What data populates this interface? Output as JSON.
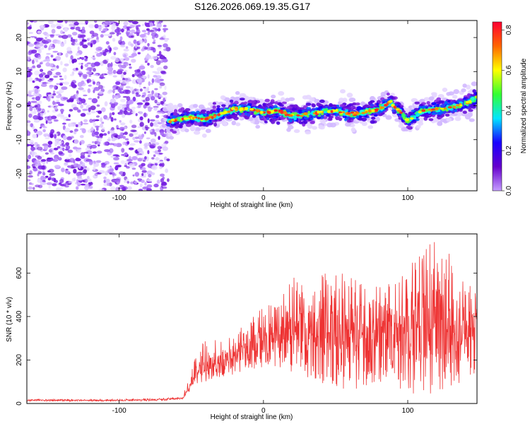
{
  "title": "S126.2026.069.19.35.G17",
  "chart_data": [
    {
      "type": "heatmap",
      "xlabel": "Height of straight line (km)",
      "ylabel": "Frequency (Hz)",
      "xlim": [
        -164,
        148
      ],
      "ylim": [
        -25,
        25
      ],
      "xticks": [
        -100,
        0,
        100
      ],
      "yticks": [
        -20,
        -10,
        0,
        10,
        20
      ],
      "colorbar": {
        "label": "Normalized spectral amplitude",
        "range": [
          0.0,
          0.84
        ],
        "ticks": [
          0.0,
          0.2,
          0.4,
          0.6,
          0.8
        ],
        "colormap": [
          "#c59dff",
          "#6600cc",
          "#1a00ff",
          "#00e5ff",
          "#33ff33",
          "#ffff00",
          "#ff6600",
          "#ff0033"
        ]
      },
      "noise_region_x": [
        -164,
        -66
      ],
      "ridge": {
        "x": [
          -66,
          -50,
          -40,
          -30,
          -20,
          -10,
          0,
          10,
          20,
          30,
          40,
          50,
          60,
          70,
          80,
          88,
          95,
          100,
          110,
          120,
          130,
          140,
          148
        ],
        "freq": [
          -4.5,
          -3.5,
          -4,
          -2.5,
          -1,
          -1,
          -2,
          -1.5,
          -3,
          -2.5,
          -2,
          -1.5,
          -2.5,
          -2,
          -1,
          1,
          -2,
          -4.5,
          -1.5,
          -1,
          -0.5,
          0.5,
          2.5
        ]
      }
    },
    {
      "type": "line",
      "xlabel": "Height of straight line (km)",
      "ylabel": "SNR (10 * v/v)",
      "xlim": [
        -164,
        148
      ],
      "ylim": [
        0,
        780
      ],
      "xticks": [
        -100,
        0,
        100
      ],
      "yticks": [
        0,
        200,
        400,
        600
      ],
      "series": [
        {
          "name": "SNR",
          "color": "#ee3333",
          "x": [
            -164,
            -100,
            -70,
            -56,
            -50,
            -45,
            -40,
            -30,
            -20,
            -10,
            0,
            10,
            20,
            30,
            40,
            50,
            60,
            70,
            80,
            90,
            100,
            110,
            120,
            130,
            140,
            148
          ],
          "upper": [
            20,
            20,
            25,
            30,
            180,
            260,
            290,
            300,
            320,
            400,
            450,
            470,
            600,
            560,
            620,
            640,
            580,
            560,
            600,
            540,
            620,
            720,
            770,
            680,
            560,
            520
          ],
          "lower": [
            10,
            10,
            12,
            20,
            60,
            90,
            100,
            120,
            130,
            150,
            160,
            170,
            140,
            120,
            90,
            70,
            60,
            70,
            90,
            60,
            40,
            50,
            40,
            60,
            90,
            140
          ],
          "mean": [
            15,
            15,
            18,
            25,
            100,
            150,
            160,
            180,
            220,
            280,
            300,
            310,
            340,
            340,
            350,
            360,
            350,
            340,
            360,
            340,
            350,
            360,
            350,
            340,
            330,
            320
          ]
        }
      ]
    }
  ]
}
